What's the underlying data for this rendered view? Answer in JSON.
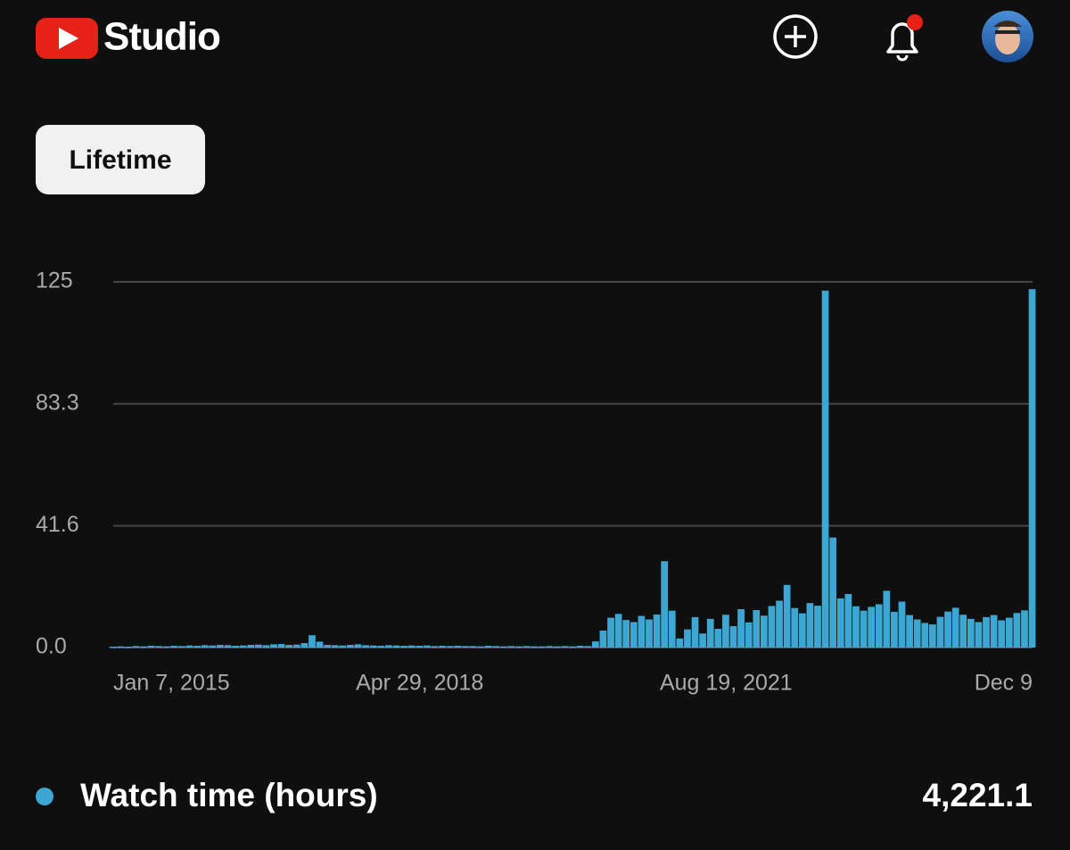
{
  "header": {
    "brand": "Studio"
  },
  "filter": {
    "label": "Lifetime"
  },
  "chart_data": {
    "type": "bar",
    "color": "#3ea6d3",
    "categories": [
      "Jan 7, 2015",
      null,
      null,
      null,
      null,
      null,
      null,
      null,
      null,
      null,
      null,
      null,
      null,
      null,
      null,
      null,
      null,
      null,
      null,
      null,
      null,
      null,
      null,
      null,
      null,
      null,
      null,
      null,
      null,
      null,
      null,
      null,
      null,
      null,
      null,
      null,
      null,
      null,
      null,
      null,
      "Apr 29, 2018",
      null,
      null,
      null,
      null,
      null,
      null,
      null,
      null,
      null,
      null,
      null,
      null,
      null,
      null,
      null,
      null,
      null,
      null,
      null,
      null,
      null,
      null,
      null,
      null,
      null,
      null,
      null,
      null,
      null,
      null,
      null,
      null,
      null,
      null,
      null,
      null,
      null,
      null,
      null,
      "Aug 19, 2021",
      null,
      null,
      null,
      null,
      null,
      null,
      null,
      null,
      null,
      null,
      null,
      null,
      null,
      null,
      null,
      null,
      null,
      null,
      null,
      null,
      null,
      null,
      null,
      null,
      null,
      null,
      null,
      null,
      null,
      null,
      null,
      null,
      null,
      null,
      null,
      null,
      null,
      null,
      null,
      "Dec 9"
    ],
    "series": [
      {
        "name": "Watch time (hours)",
        "color": "#3ea6d3",
        "values": [
          0.3,
          0.4,
          0.3,
          0.5,
          0.4,
          0.6,
          0.5,
          0.4,
          0.6,
          0.5,
          0.7,
          0.6,
          0.8,
          0.7,
          0.9,
          0.8,
          0.6,
          0.7,
          0.9,
          1.0,
          0.8,
          1.1,
          1.2,
          0.9,
          1.0,
          1.5,
          4.2,
          2.0,
          0.9,
          0.8,
          0.7,
          0.9,
          1.1,
          0.8,
          0.7,
          0.6,
          0.8,
          0.7,
          0.6,
          0.7,
          0.6,
          0.7,
          0.5,
          0.6,
          0.5,
          0.6,
          0.5,
          0.5,
          0.4,
          0.6,
          0.5,
          0.4,
          0.5,
          0.4,
          0.5,
          0.4,
          0.4,
          0.5,
          0.4,
          0.5,
          0.4,
          0.6,
          0.5,
          2.1,
          5.8,
          10.2,
          11.5,
          9.4,
          8.7,
          10.8,
          9.6,
          11.3,
          29.5,
          12.6,
          3.1,
          6.2,
          10.4,
          4.8,
          9.8,
          6.4,
          11.2,
          7.3,
          13.1,
          8.6,
          12.8,
          10.9,
          14.2,
          16.0,
          21.4,
          13.5,
          11.7,
          15.2,
          14.3,
          122.0,
          37.6,
          16.8,
          18.3,
          14.1,
          12.6,
          13.9,
          14.8,
          19.4,
          12.2,
          15.7,
          11.1,
          9.6,
          8.4,
          7.9,
          10.5,
          12.3,
          13.6,
          11.2,
          9.8,
          8.7,
          10.4,
          11.1,
          9.3,
          10.2,
          11.8,
          12.7,
          122.5
        ]
      }
    ],
    "ylim": [
      0,
      125
    ],
    "yticks": [
      {
        "value": 0,
        "label": "0.0"
      },
      41.6,
      83.3,
      125
    ],
    "grid": true,
    "total": "4,221.1"
  }
}
